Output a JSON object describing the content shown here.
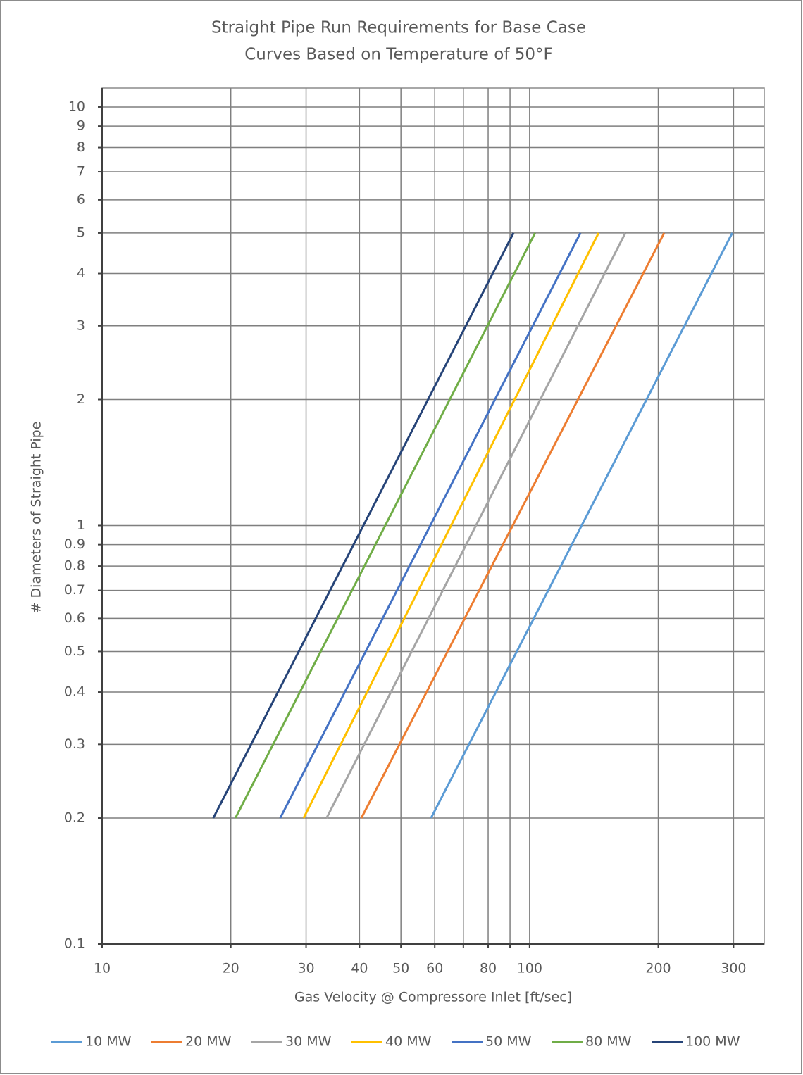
{
  "chart_data": {
    "type": "line",
    "title": "Straight Pipe Run Requirements for Base Case",
    "subtitle": "Curves Based on Temperature of 50°F",
    "x_label": "Gas Velocity @ Compressore Inlet [ft/sec]",
    "y_label": "# Diameters of Straight Pipe",
    "x_log": true,
    "y_log": true,
    "grid": true,
    "legend": "bottom",
    "xlim": [
      10,
      354
    ],
    "ylim": [
      0.1,
      11.1
    ],
    "xticks": [
      10,
      20,
      30,
      40,
      50,
      60,
      {
        "value": 70,
        "label": null
      },
      80,
      {
        "value": 90,
        "label": null
      },
      100,
      200,
      300
    ],
    "yticks": [
      0.1,
      0.2,
      0.3,
      0.4,
      0.5,
      0.6,
      0.7,
      0.8,
      0.9,
      1,
      2,
      3,
      4,
      5,
      6,
      7,
      8,
      9,
      10
    ],
    "series": [
      {
        "name": "10 MW",
        "color": "#5b9bd5",
        "x": [
          58.8,
          298
        ],
        "values": [
          0.2,
          5
        ]
      },
      {
        "name": "20 MW",
        "color": "#ed7d31",
        "x": [
          40.4,
          206.5
        ],
        "values": [
          0.2,
          5
        ]
      },
      {
        "name": "30 MW",
        "color": "#a5a5a5",
        "x": [
          33.5,
          167.5
        ],
        "values": [
          0.2,
          5
        ]
      },
      {
        "name": "40 MW",
        "color": "#ffc000",
        "x": [
          29.6,
          145
        ],
        "values": [
          0.2,
          5
        ]
      },
      {
        "name": "50 MW",
        "color": "#4472c4",
        "x": [
          26.1,
          131.5
        ],
        "values": [
          0.2,
          5
        ]
      },
      {
        "name": "80 MW",
        "color": "#70ad47",
        "x": [
          20.5,
          103
        ],
        "values": [
          0.2,
          5
        ]
      },
      {
        "name": "100 MW",
        "color": "#264478",
        "x": [
          18.2,
          91.7
        ],
        "values": [
          0.2,
          5
        ]
      }
    ]
  }
}
